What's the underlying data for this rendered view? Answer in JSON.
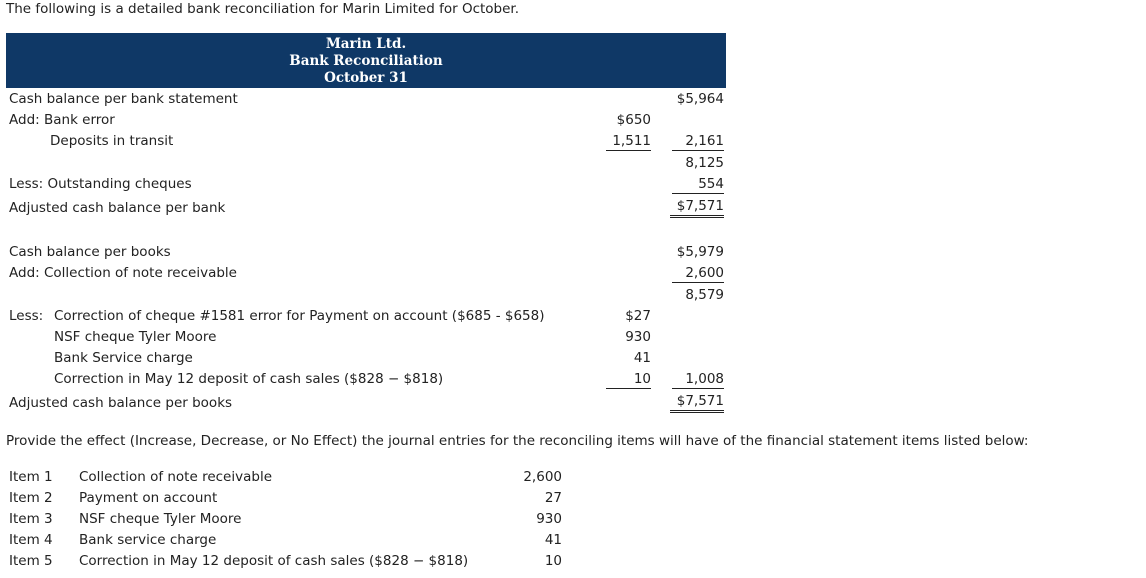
{
  "intro": "The following is a detailed bank reconciliation for Marin Limited for October.",
  "header": {
    "company": "Marin Ltd.",
    "title": "Bank Reconciliation",
    "date": "October 31"
  },
  "bank": {
    "balance_label": "Cash balance per bank statement",
    "balance": "$5,964",
    "add_label": "Add: Bank error",
    "bank_error": "$650",
    "deposits_label": "Deposits in transit",
    "deposits": "1,511",
    "add_total": "2,161",
    "subtotal": "8,125",
    "less_label": "Less: Outstanding cheques",
    "outstanding": "554",
    "adjusted_label": "Adjusted cash balance per bank",
    "adjusted": "$7,571"
  },
  "books": {
    "balance_label": "Cash balance per books",
    "balance": "$5,979",
    "add_label": "Add: Collection of note receivable",
    "collection": "2,600",
    "subtotal": "8,579",
    "less_prefix": "Less:",
    "less_items": [
      {
        "label": "Correction of cheque #1581 error for Payment on account ($685 - $658)",
        "amount": "$27"
      },
      {
        "label": "NSF cheque Tyler Moore",
        "amount": "930"
      },
      {
        "label": "Bank Service charge",
        "amount": "41"
      },
      {
        "label": "Correction in May 12 deposit of cash sales ($828 − $818)",
        "amount": "10"
      }
    ],
    "less_total": "1,008",
    "adjusted_label": "Adjusted cash balance per books",
    "adjusted": "$7,571"
  },
  "question": "Provide the effect (Increase, Decrease, or No Effect) the journal entries for the reconciling items will have of the financial statement items listed below:",
  "items": [
    {
      "num": "Item 1",
      "desc": "Collection of note receivable",
      "amount": "2,600"
    },
    {
      "num": "Item 2",
      "desc": "Payment on account",
      "amount": "27"
    },
    {
      "num": "Item 3",
      "desc": "NSF cheque Tyler Moore",
      "amount": "930"
    },
    {
      "num": "Item 4",
      "desc": "Bank service charge",
      "amount": "41"
    },
    {
      "num": "Item 5",
      "desc": "Correction in May 12 deposit of cash sales ($828 − $818)",
      "amount": "10"
    }
  ]
}
